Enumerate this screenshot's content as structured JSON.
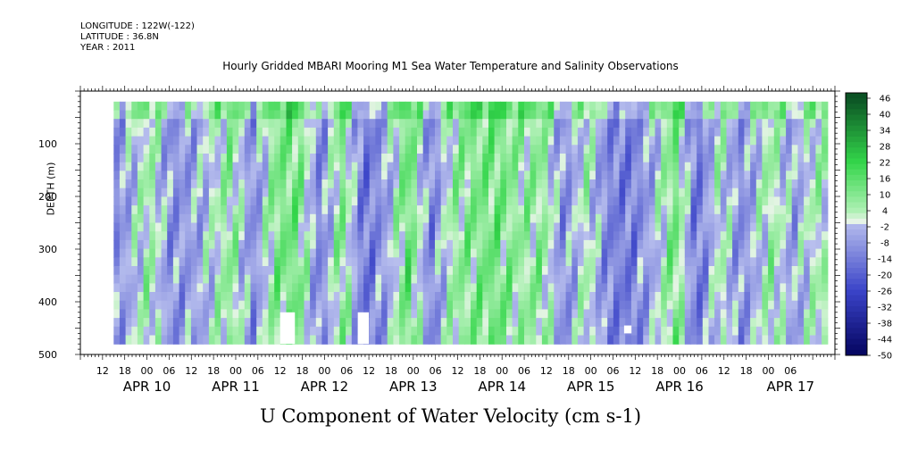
{
  "header": {
    "longitude": "LONGITUDE : 122W(-122)",
    "latitude": "LATITUDE : 36.8N",
    "year": "YEAR : 2011",
    "title": "Hourly Gridded MBARI Mooring M1 Sea Water Temperature and Salinity Observations"
  },
  "footer": {
    "variable": "U Component of Water Velocity (cm s-1)"
  },
  "chart_data": {
    "type": "heatmap",
    "title": "Hourly Gridded MBARI Mooring M1 Sea Water Temperature and Salinity Observations",
    "zlabel": "U Component of Water Velocity (cm s-1)",
    "ylabel": "DEPTH (m)",
    "ylim": [
      500,
      0
    ],
    "y_ticks": [
      100,
      200,
      300,
      400,
      500
    ],
    "x_range_hours": [
      0,
      204
    ],
    "x_hour_ticks": [
      "12",
      "18",
      "00",
      "06",
      "12",
      "18",
      "00",
      "06",
      "12",
      "18",
      "00",
      "06",
      "12",
      "18",
      "00",
      "06",
      "12",
      "18",
      "00",
      "06",
      "12",
      "18",
      "00",
      "06",
      "12",
      "18",
      "00",
      "06",
      "12",
      "18",
      "00",
      "06"
    ],
    "x_day_labels": [
      "APR 10",
      "APR 11",
      "APR 12",
      "APR 13",
      "APR 14",
      "APR 15",
      "APR 16",
      "APR 17"
    ],
    "data_time_start": "APR 10 15:00",
    "data_depth_range": [
      20,
      480
    ],
    "colorbar_levels": [
      46,
      40,
      34,
      28,
      22,
      16,
      10,
      4,
      -2,
      -8,
      -14,
      -20,
      -26,
      -32,
      -38,
      -44,
      -50
    ],
    "colormap": {
      "negative_low": "#04045e",
      "negative_mid": "#3a43c8",
      "negative_high": "#b9c0ee",
      "zero": "#e6f4e6",
      "positive_low": "#aef0b4",
      "positive_mid": "#33d64a",
      "positive_high": "#0b5224"
    },
    "bands": [
      {
        "hour": 0,
        "value": -14
      },
      {
        "hour": 5,
        "value": -18
      },
      {
        "hour": 10,
        "value": -8
      },
      {
        "hour": 18,
        "value": 6
      },
      {
        "hour": 24,
        "value": -10
      },
      {
        "hour": 32,
        "value": -4
      },
      {
        "hour": 40,
        "value": 8
      },
      {
        "hour": 46,
        "value": -10
      },
      {
        "hour": 52,
        "value": 10
      },
      {
        "hour": 58,
        "value": 12
      },
      {
        "hour": 64,
        "value": -12
      },
      {
        "hour": 70,
        "value": 10
      },
      {
        "hour": 76,
        "value": -16
      },
      {
        "hour": 82,
        "value": -6
      },
      {
        "hour": 88,
        "value": 14
      },
      {
        "hour": 94,
        "value": -12
      },
      {
        "hour": 100,
        "value": 6
      },
      {
        "hour": 106,
        "value": 10
      },
      {
        "hour": 112,
        "value": 12
      },
      {
        "hour": 118,
        "value": 6
      },
      {
        "hour": 124,
        "value": 8
      },
      {
        "hour": 130,
        "value": -10
      },
      {
        "hour": 136,
        "value": 4
      },
      {
        "hour": 142,
        "value": -12
      },
      {
        "hour": 148,
        "value": -14
      },
      {
        "hour": 154,
        "value": -4
      },
      {
        "hour": 160,
        "value": 12
      },
      {
        "hour": 166,
        "value": -16
      },
      {
        "hour": 172,
        "value": 4
      },
      {
        "hour": 178,
        "value": -10
      },
      {
        "hour": 186,
        "value": 6
      },
      {
        "hour": 192,
        "value": -6
      },
      {
        "hour": 198,
        "value": 4
      }
    ],
    "data_gaps": [
      {
        "hour_start": 54,
        "hour_end": 58,
        "depth_start": 420,
        "depth_end": 480
      },
      {
        "hour_start": 75,
        "hour_end": 78,
        "depth_start": 420,
        "depth_end": 480
      },
      {
        "hour_start": 147,
        "hour_end": 149,
        "depth_start": 445,
        "depth_end": 460
      }
    ],
    "grid": false,
    "legend": "colorbar-right"
  }
}
